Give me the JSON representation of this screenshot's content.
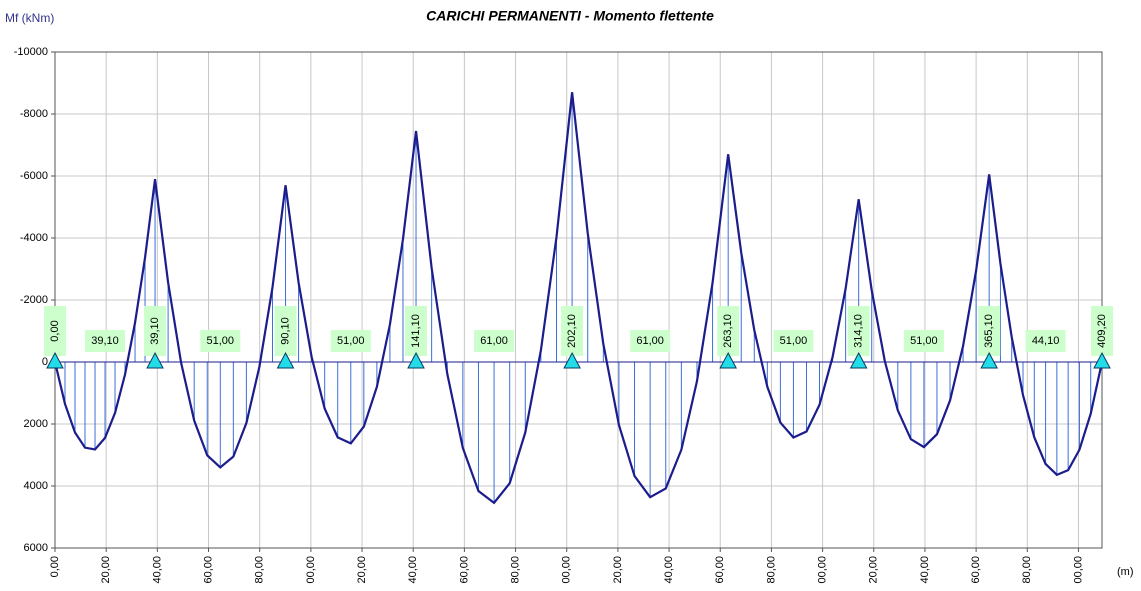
{
  "chart_data": {
    "type": "moment_diagram",
    "title": "CARICHI PERMANENTI - Momento flettente",
    "y_label": "Mf (kNm)",
    "x_label": "(m)",
    "xlim": [
      0,
      409.2
    ],
    "xticks": [
      {
        "value": 0,
        "label": "0,00"
      },
      {
        "value": 20,
        "label": "20,00"
      },
      {
        "value": 40,
        "label": "40,00"
      },
      {
        "value": 60,
        "label": "60,00"
      },
      {
        "value": 80,
        "label": "80,00"
      },
      {
        "value": 100,
        "label": "00,00"
      },
      {
        "value": 120,
        "label": "20,00"
      },
      {
        "value": 140,
        "label": "40,00"
      },
      {
        "value": 160,
        "label": "60,00"
      },
      {
        "value": 180,
        "label": "80,00"
      },
      {
        "value": 200,
        "label": "00,00"
      },
      {
        "value": 220,
        "label": "20,00"
      },
      {
        "value": 240,
        "label": "40,00"
      },
      {
        "value": 260,
        "label": "60,00"
      },
      {
        "value": 280,
        "label": "80,00"
      },
      {
        "value": 300,
        "label": "00,00"
      },
      {
        "value": 320,
        "label": "20,00"
      },
      {
        "value": 340,
        "label": "40,00"
      },
      {
        "value": 360,
        "label": "60,00"
      },
      {
        "value": 380,
        "label": "80,00"
      },
      {
        "value": 400,
        "label": "00,00"
      }
    ],
    "ylim": [
      -10000,
      6000
    ],
    "y_inverted": true,
    "yticks": [
      -10000,
      -8000,
      -6000,
      -4000,
      -2000,
      0,
      2000,
      4000,
      6000
    ],
    "grid": true,
    "series": [
      {
        "name": "Mf",
        "color": "#1c1c8c",
        "hatch_color": "#3a6fd8",
        "x": [
          0,
          3.91,
          7.82,
          11.73,
          15.64,
          19.55,
          23.46,
          27.37,
          31.28,
          35.19,
          39.1,
          44.2,
          49.3,
          54.4,
          59.5,
          64.6,
          69.7,
          74.8,
          79.9,
          85,
          90.1,
          95.2,
          100.3,
          105.4,
          110.5,
          115.6,
          120.7,
          125.8,
          130.9,
          136,
          141.1,
          147.2,
          153.3,
          159.4,
          165.5,
          171.6,
          177.7,
          183.8,
          189.9,
          196,
          202.1,
          208.2,
          214.3,
          220.4,
          226.5,
          232.6,
          238.7,
          244.8,
          250.9,
          257,
          263.1,
          268.2,
          273.3,
          278.4,
          283.5,
          288.6,
          293.7,
          298.8,
          303.9,
          309,
          314.1,
          319.2,
          324.3,
          329.4,
          334.5,
          339.6,
          344.7,
          349.8,
          354.9,
          360,
          365.1,
          369.51,
          373.92,
          378.33,
          382.74,
          387.15,
          391.56,
          395.97,
          400.38,
          404.79,
          409.2
        ],
        "values": [
          0,
          1353,
          2274,
          2763,
          2821,
          2447,
          1641,
          403,
          -1266,
          -3367,
          -5900,
          -2568,
          28,
          1888,
          3012,
          3400,
          3052,
          1968,
          148,
          -2408,
          -5700,
          -2563,
          -162,
          1503,
          2432,
          2625,
          2082,
          803,
          -1212,
          -3963,
          -7450,
          -3033,
          375,
          2774,
          4163,
          4543,
          3913,
          2274,
          -375,
          -4033,
          -8700,
          -4158,
          -582,
          2030,
          3678,
          4360,
          4078,
          2830,
          618,
          -2558,
          -6700,
          -3527,
          -1028,
          799,
          1954,
          2435,
          2244,
          1379,
          -158,
          -2367,
          -5250,
          -2308,
          -37,
          1562,
          2489,
          2745,
          2329,
          1242,
          -517,
          -2948,
          -6050,
          -3172,
          -800,
          1068,
          2430,
          3288,
          3640,
          3488,
          2830,
          1668,
          0
        ]
      }
    ],
    "supports": [
      {
        "x": 0,
        "label": "0,00"
      },
      {
        "x": 39.1,
        "label": "39,10"
      },
      {
        "x": 90.1,
        "label": "90,10"
      },
      {
        "x": 141.1,
        "label": "141,10"
      },
      {
        "x": 202.1,
        "label": "202,10"
      },
      {
        "x": 263.1,
        "label": "263,10"
      },
      {
        "x": 314.1,
        "label": "314,10"
      },
      {
        "x": 365.1,
        "label": "365,10"
      },
      {
        "x": 409.2,
        "label": "409,20"
      }
    ],
    "support_color": "#22dde8",
    "span_labels": [
      "39,10",
      "51,00",
      "51,00",
      "61,00",
      "61,00",
      "51,00",
      "51,00",
      "44,10"
    ]
  }
}
